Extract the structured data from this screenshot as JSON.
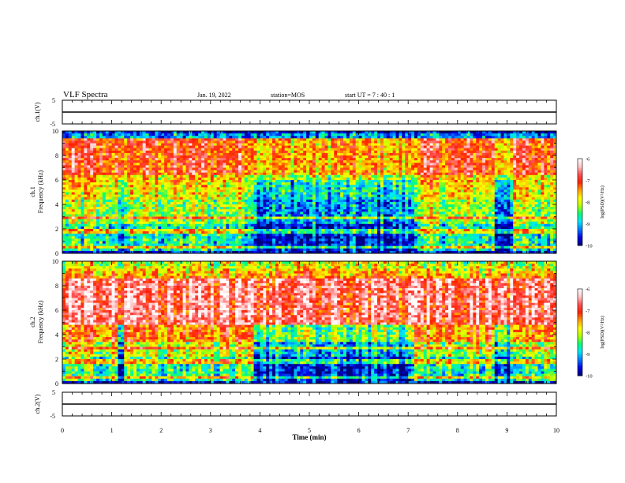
{
  "header": {
    "title": "VLF Spectra",
    "date": "Jan. 19, 2022",
    "station": "station=MOS",
    "start": "start UT =  7 : 40 : 1"
  },
  "colors": {
    "stops": [
      "#000078",
      "#0000e6",
      "#0078ff",
      "#00e6ff",
      "#00ff78",
      "#b4ff00",
      "#ffff00",
      "#ffa000",
      "#ff2000",
      "#ff5050",
      "#ffc8c8",
      "#ffffff"
    ]
  },
  "chart_data": [
    {
      "type": "line",
      "panel": "ch1_voltage",
      "ylabel": "ch.1(V)",
      "ylim": [
        -5,
        5
      ],
      "yticks": [
        "5",
        "-5"
      ],
      "series": [
        {
          "values": [
            0,
            0,
            0,
            0,
            0,
            0,
            0,
            0,
            0,
            0,
            0
          ]
        }
      ]
    },
    {
      "type": "heatmap",
      "panel": "ch1_spectrogram",
      "ylabel": "ch.1\nFrequency (kHz)",
      "ylim": [
        0,
        10
      ],
      "yticks": [
        "0",
        "2",
        "4",
        "6",
        "8",
        "10"
      ],
      "colorbar": {
        "label": "log(PSD)(V²/Hz)",
        "ticks": [
          "-6",
          "-7",
          "-8",
          "-9",
          "-10"
        ],
        "range": [
          -10,
          -6
        ]
      },
      "dark_intervals_min": [
        [
          1.1,
          1.28
        ],
        [
          3.85,
          7.1
        ],
        [
          8.75,
          9.15
        ]
      ]
    },
    {
      "type": "heatmap",
      "panel": "ch2_spectrogram",
      "ylabel": "ch.2\nFrequency (kHz)",
      "ylim": [
        0,
        10
      ],
      "yticks": [
        "0",
        "2",
        "4",
        "6",
        "8",
        "10"
      ],
      "colorbar": {
        "label": "log(PSD)(V²/Hz)",
        "ticks": [
          "-6",
          "-7",
          "-8",
          "-9",
          "-10"
        ],
        "range": [
          -10,
          -6
        ]
      },
      "dark_intervals_min": [
        [
          1.1,
          1.28
        ],
        [
          3.85,
          7.1
        ],
        [
          8.75,
          9.15
        ]
      ]
    },
    {
      "type": "line",
      "panel": "ch2_voltage",
      "ylabel": "ch.2(V)",
      "ylim": [
        -5,
        5
      ],
      "yticks": [
        "5",
        "-5"
      ],
      "series": [
        {
          "values": [
            0,
            0,
            0,
            0,
            0,
            0,
            0,
            0,
            0,
            0,
            0
          ]
        }
      ]
    }
  ],
  "xaxis": {
    "label": "Time (min)",
    "xlim": [
      0,
      10
    ],
    "ticks": [
      "0",
      "1",
      "2",
      "3",
      "4",
      "5",
      "6",
      "7",
      "8",
      "9",
      "10"
    ]
  }
}
